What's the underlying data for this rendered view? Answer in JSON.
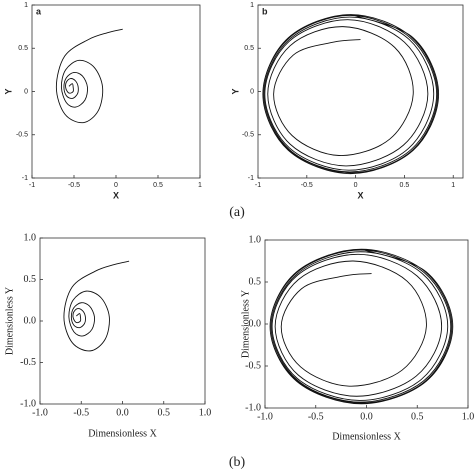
{
  "captions": [
    "(a)",
    "(b)"
  ],
  "chart_data": [
    {
      "type": "line",
      "panel_label": "a",
      "xlabel": "X",
      "ylabel": "Y",
      "xlim": [
        -1,
        1
      ],
      "ylim": [
        -1,
        1
      ],
      "xticks": [
        -1,
        -0.5,
        0,
        0.5,
        1
      ],
      "yticks": [
        -1,
        -0.5,
        0,
        0.5,
        1
      ],
      "series": [
        {
          "color": "#111",
          "x": [
            0.08,
            -0.1,
            -0.33,
            -0.61,
            -0.71,
            -0.61,
            -0.39,
            -0.21,
            -0.16,
            -0.26,
            -0.44,
            -0.6,
            -0.65,
            -0.59,
            -0.48,
            -0.37,
            -0.34,
            -0.4,
            -0.5,
            -0.59,
            -0.62,
            -0.59,
            -0.52,
            -0.46,
            -0.45,
            -0.48,
            -0.54,
            -0.59,
            -0.6,
            -0.58,
            -0.55,
            -0.51,
            -0.51,
            -0.52,
            -0.56
          ],
          "values": [
            0.72,
            0.68,
            0.6,
            0.41,
            0.05,
            -0.26,
            -0.36,
            -0.22,
            0.05,
            0.28,
            0.36,
            0.25,
            0.05,
            -0.13,
            -0.18,
            -0.1,
            0.05,
            0.18,
            0.22,
            0.16,
            0.05,
            -0.05,
            -0.08,
            -0.03,
            0.05,
            0.12,
            0.15,
            0.11,
            0.05,
            0,
            -0.02,
            0,
            0.05,
            0.09,
            0.06
          ]
        }
      ]
    },
    {
      "type": "line",
      "panel_label": "b",
      "xlabel": "X",
      "ylabel": "Y",
      "xlim": [
        -1,
        1.1
      ],
      "ylim": [
        -1,
        1
      ],
      "xticks": [
        -1,
        -0.5,
        0,
        0.5,
        1
      ],
      "yticks": [
        -1,
        -0.5,
        0,
        0.5,
        1
      ],
      "series": [
        {
          "color": "#111",
          "x": [
            0.05,
            -0.23,
            -0.64,
            -0.84,
            -0.65,
            -0.17,
            0.35,
            0.59,
            0.4,
            -0.13,
            -0.67,
            -0.9,
            -0.67,
            -0.1,
            0.49,
            0.74,
            0.5,
            -0.08,
            -0.68,
            -0.93,
            -0.68,
            -0.07,
            0.54,
            0.8,
            0.55,
            -0.06,
            -0.68,
            -0.94,
            -0.68,
            -0.06,
            0.57,
            0.83,
            0.57,
            -0.06,
            -0.69,
            -0.95,
            -0.69,
            -0.05,
            0.58,
            0.84,
            0.58,
            -0.05,
            -0.69,
            -0.95,
            -0.69,
            -0.05,
            0.59,
            0.85,
            0.59,
            -0.05
          ],
          "values": [
            0.6,
            0.57,
            0.42,
            -0.03,
            -0.51,
            -0.74,
            -0.55,
            -0.03,
            0.51,
            0.75,
            0.53,
            -0.03,
            -0.61,
            -0.86,
            -0.62,
            -0.03,
            0.57,
            0.83,
            0.58,
            -0.03,
            -0.65,
            -0.91,
            -0.66,
            -0.03,
            0.6,
            0.86,
            0.6,
            -0.03,
            -0.67,
            -0.93,
            -0.67,
            -0.03,
            0.61,
            0.88,
            0.61,
            -0.03,
            -0.67,
            -0.94,
            -0.68,
            -0.03,
            0.62,
            0.89,
            0.62,
            -0.03,
            -0.68,
            -0.95,
            -0.68,
            -0.03,
            0.62,
            0.89
          ]
        }
      ]
    },
    {
      "type": "line",
      "xlabel": "Dimensionless X",
      "ylabel": "Dimensionless Y",
      "xlim": [
        -1,
        1
      ],
      "ylim": [
        -1,
        1
      ],
      "xticks": [
        {
          "value": -1,
          "label": "-1.0"
        },
        {
          "value": -0.5,
          "label": "-0.5"
        },
        {
          "value": 0,
          "label": "0.0"
        },
        {
          "value": 0.5,
          "label": "0.5"
        },
        {
          "value": 1,
          "label": "1.0"
        }
      ],
      "yticks": [
        {
          "value": -1,
          "label": "-1.0"
        },
        {
          "value": -0.5,
          "label": "-0.5"
        },
        {
          "value": 0,
          "label": "0.0"
        },
        {
          "value": 0.5,
          "label": "0.5"
        },
        {
          "value": 1,
          "label": "1.0"
        }
      ],
      "series": [
        {
          "color": "#111",
          "x": [
            0.08,
            -0.1,
            -0.33,
            -0.61,
            -0.71,
            -0.61,
            -0.39,
            -0.21,
            -0.16,
            -0.26,
            -0.44,
            -0.6,
            -0.65,
            -0.59,
            -0.48,
            -0.37,
            -0.34,
            -0.4,
            -0.5,
            -0.59,
            -0.62,
            -0.59,
            -0.52,
            -0.46,
            -0.45,
            -0.48,
            -0.54,
            -0.59,
            -0.6,
            -0.58,
            -0.55,
            -0.51,
            -0.51,
            -0.52,
            -0.56
          ],
          "values": [
            0.72,
            0.68,
            0.6,
            0.41,
            0.05,
            -0.26,
            -0.36,
            -0.22,
            0.05,
            0.28,
            0.36,
            0.25,
            0.05,
            -0.13,
            -0.18,
            -0.1,
            0.05,
            0.18,
            0.22,
            0.16,
            0.05,
            -0.05,
            -0.08,
            -0.03,
            0.05,
            0.12,
            0.15,
            0.11,
            0.05,
            0,
            -0.02,
            0,
            0.05,
            0.09,
            0.06
          ]
        }
      ]
    },
    {
      "type": "line",
      "xlabel": "Dimensionless X",
      "ylabel": "Dimensionless Y",
      "xlim": [
        -1,
        1
      ],
      "ylim": [
        -1,
        1
      ],
      "xticks": [
        {
          "value": -1,
          "label": "-1.0"
        },
        {
          "value": -0.5,
          "label": "-0.5"
        },
        {
          "value": 0,
          "label": "0.0"
        },
        {
          "value": 0.5,
          "label": "0.5"
        },
        {
          "value": 1,
          "label": "1.0"
        }
      ],
      "yticks": [
        {
          "value": -1,
          "label": "-1.0"
        },
        {
          "value": -0.5,
          "label": "-0.5"
        },
        {
          "value": 0,
          "label": "0.0"
        },
        {
          "value": 0.5,
          "label": "0.5"
        },
        {
          "value": 1,
          "label": "1.0"
        }
      ],
      "series": [
        {
          "color": "#111",
          "x": [
            0.05,
            -0.23,
            -0.64,
            -0.84,
            -0.65,
            -0.17,
            0.35,
            0.59,
            0.4,
            -0.13,
            -0.67,
            -0.9,
            -0.67,
            -0.1,
            0.49,
            0.74,
            0.5,
            -0.08,
            -0.68,
            -0.93,
            -0.68,
            -0.07,
            0.54,
            0.8,
            0.55,
            -0.06,
            -0.68,
            -0.94,
            -0.68,
            -0.06,
            0.57,
            0.83,
            0.57,
            -0.06,
            -0.69,
            -0.95,
            -0.69,
            -0.05,
            0.58,
            0.84,
            0.58,
            -0.05,
            -0.69,
            -0.95,
            -0.69,
            -0.05,
            0.59,
            0.85,
            0.59,
            -0.05
          ],
          "values": [
            0.6,
            0.57,
            0.42,
            -0.03,
            -0.51,
            -0.74,
            -0.55,
            -0.03,
            0.51,
            0.75,
            0.53,
            -0.03,
            -0.61,
            -0.86,
            -0.62,
            -0.03,
            0.57,
            0.83,
            0.58,
            -0.03,
            -0.65,
            -0.91,
            -0.66,
            -0.03,
            0.6,
            0.86,
            0.6,
            -0.03,
            -0.67,
            -0.93,
            -0.67,
            -0.03,
            0.61,
            0.88,
            0.61,
            -0.03,
            -0.67,
            -0.94,
            -0.68,
            -0.03,
            0.62,
            0.89,
            0.62,
            -0.03,
            -0.68,
            -0.95,
            -0.68,
            -0.03,
            0.62,
            0.89
          ]
        }
      ]
    }
  ]
}
